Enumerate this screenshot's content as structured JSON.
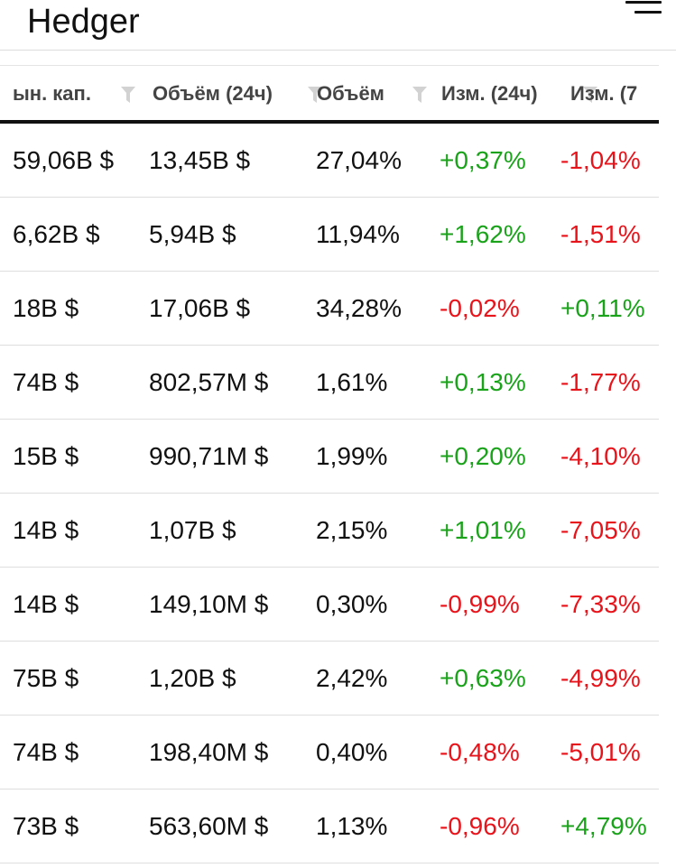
{
  "app": {
    "title": "Hedger",
    "menu_icon": "hamburger-menu-icon"
  },
  "colors": {
    "positive": "#1aa31a",
    "negative": "#e8141c",
    "text": "#111111",
    "header_text": "#444444"
  },
  "table": {
    "columns": [
      {
        "label": "ын. кап.",
        "filter_icon": "filter-icon"
      },
      {
        "label": "Объём (24ч)",
        "filter_icon": "filter-icon"
      },
      {
        "label": "Объём",
        "filter_icon": "filter-icon"
      },
      {
        "label": "Изм. (24ч)",
        "filter_icon": "filter-icon"
      },
      {
        "label": "Изм. (7",
        "filter_icon": ""
      }
    ],
    "rows": [
      {
        "market_cap": "59,06B $",
        "volume_24h": "13,45B $",
        "volume_share": "27,04%",
        "change_24h": "+0,37%",
        "change_7d": "-1,04%"
      },
      {
        "market_cap": "6,62B $",
        "volume_24h": "5,94B $",
        "volume_share": "11,94%",
        "change_24h": "+1,62%",
        "change_7d": "-1,51%"
      },
      {
        "market_cap": "18B $",
        "volume_24h": "17,06B $",
        "volume_share": "34,28%",
        "change_24h": "-0,02%",
        "change_7d": "+0,11%"
      },
      {
        "market_cap": "74B $",
        "volume_24h": "802,57M $",
        "volume_share": "1,61%",
        "change_24h": "+0,13%",
        "change_7d": "-1,77%"
      },
      {
        "market_cap": "15B $",
        "volume_24h": "990,71M $",
        "volume_share": "1,99%",
        "change_24h": "+0,20%",
        "change_7d": "-4,10%"
      },
      {
        "market_cap": "14B $",
        "volume_24h": "1,07B $",
        "volume_share": "2,15%",
        "change_24h": "+1,01%",
        "change_7d": "-7,05%"
      },
      {
        "market_cap": "14B $",
        "volume_24h": "149,10M $",
        "volume_share": "0,30%",
        "change_24h": "-0,99%",
        "change_7d": "-7,33%"
      },
      {
        "market_cap": "75B $",
        "volume_24h": "1,20B $",
        "volume_share": "2,42%",
        "change_24h": "+0,63%",
        "change_7d": "-4,99%"
      },
      {
        "market_cap": "74B $",
        "volume_24h": "198,40M $",
        "volume_share": "0,40%",
        "change_24h": "-0,48%",
        "change_7d": "-5,01%"
      },
      {
        "market_cap": "73B $",
        "volume_24h": "563,60M $",
        "volume_share": "1,13%",
        "change_24h": "-0,96%",
        "change_7d": "+4,79%"
      }
    ]
  }
}
